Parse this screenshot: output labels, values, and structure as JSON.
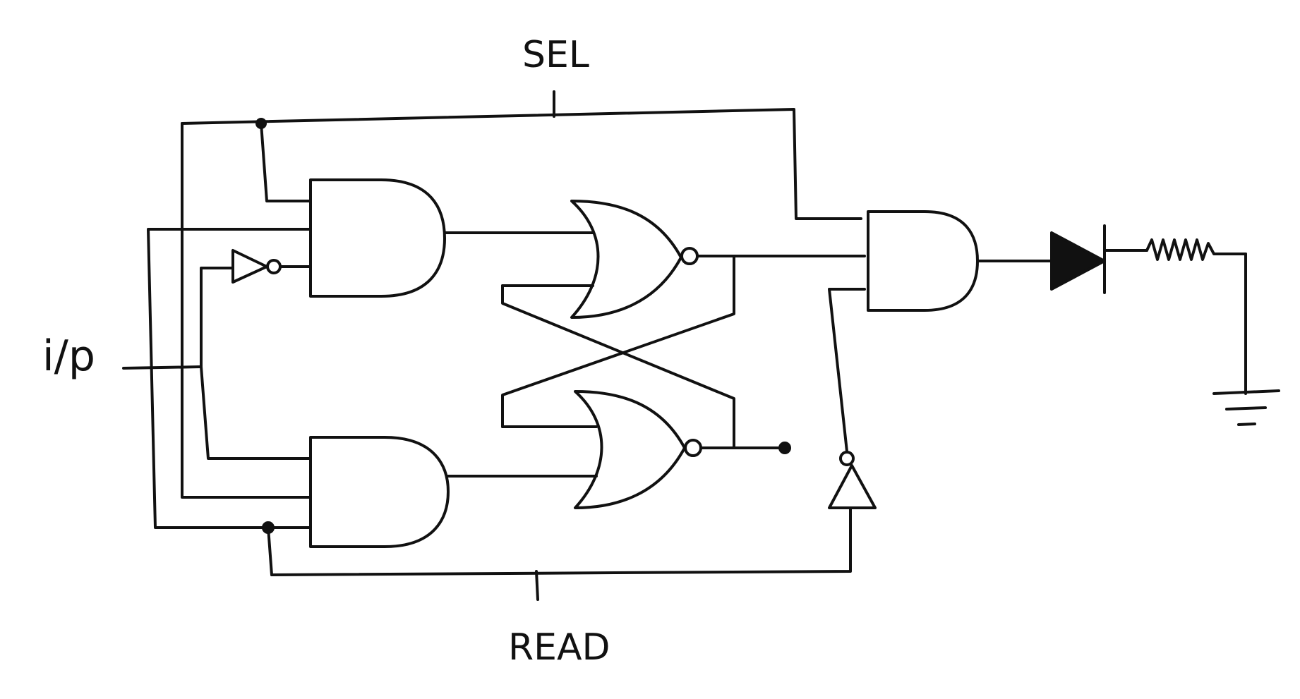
{
  "labels": {
    "sel": "SEL",
    "read": "READ",
    "input": "i/p"
  },
  "colors": {
    "background": "#ffffff",
    "ink": "#111111"
  }
}
